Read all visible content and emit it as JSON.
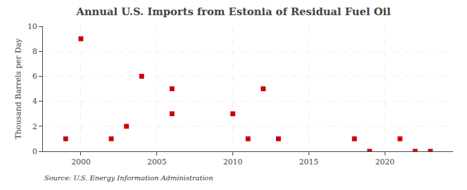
{
  "chart_data": {
    "type": "scatter",
    "title": "Annual U.S. Imports from Estonia of Residual Fuel Oil",
    "ylabel": "Thousand Barrels per Day",
    "annotations": [
      "Source: U.S. Energy Information Administration"
    ],
    "x": [
      1999,
      2000,
      2002,
      2003,
      2004,
      2006,
      2006,
      2010,
      2011,
      2012,
      2013,
      2018,
      2019,
      2021,
      2022,
      2023
    ],
    "values": [
      1,
      9,
      1,
      2,
      6,
      5,
      3,
      3,
      1,
      5,
      1,
      1,
      0,
      1,
      0,
      0
    ],
    "color": "#cc0000",
    "marker": "square",
    "xlim": [
      1997.5,
      2024.5
    ],
    "xticks": [
      2000,
      2005,
      2010,
      2015,
      2020
    ],
    "ylim": [
      0,
      10
    ],
    "yticks": [
      0,
      2,
      4,
      6,
      8,
      10
    ],
    "grid": true
  }
}
